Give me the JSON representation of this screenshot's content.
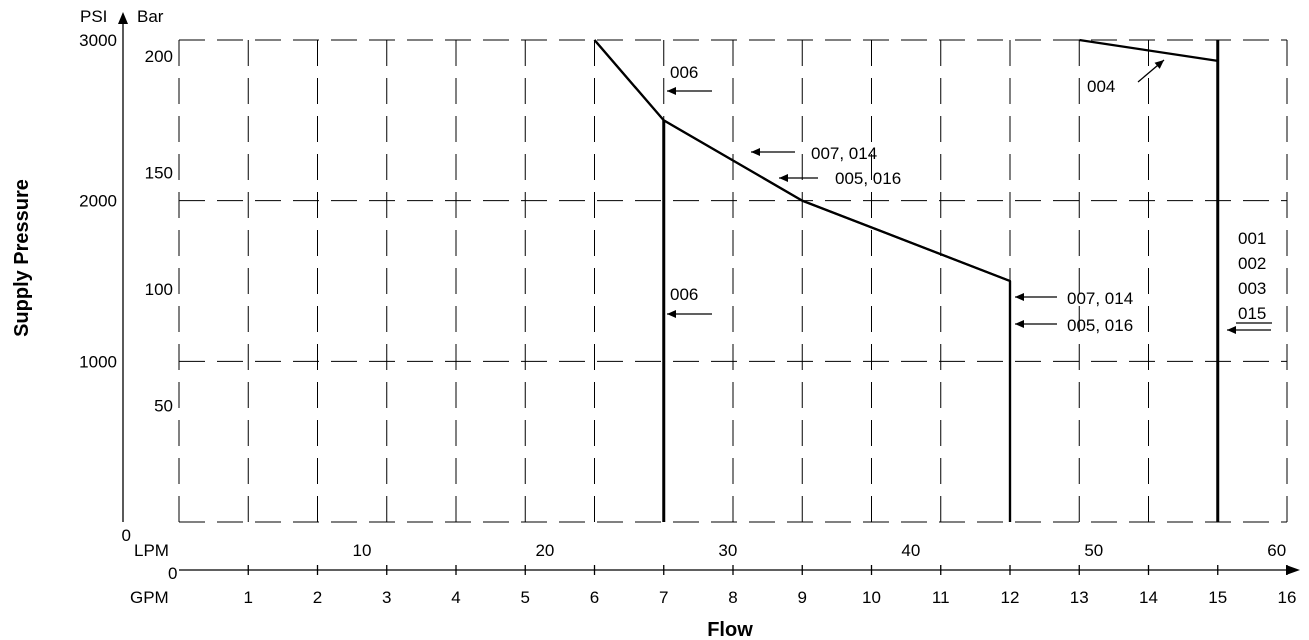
{
  "chart_data": {
    "type": "line",
    "title": "",
    "xlabel": "Flow",
    "ylabel": "Supply Pressure",
    "x_units": {
      "primary": "GPM",
      "secondary": "LPM"
    },
    "y_units": {
      "primary": "PSI",
      "secondary": "Bar"
    },
    "xlim": [
      0,
      16
    ],
    "ylim": [
      0,
      3000
    ],
    "grid": true,
    "gpm_ticks": [
      "1",
      "2",
      "3",
      "4",
      "5",
      "6",
      "7",
      "8",
      "9",
      "10",
      "11",
      "12",
      "13",
      "14",
      "15",
      "16"
    ],
    "lpm_ticks": [
      "10",
      "20",
      "30",
      "40",
      "50",
      "60"
    ],
    "psi_ticks": [
      "0",
      "1000",
      "2000",
      "3000"
    ],
    "bar_ticks": [
      "50",
      "100",
      "150",
      "200"
    ],
    "series": [
      {
        "name": "006",
        "x": [
          7,
          7
        ],
        "y": [
          0,
          2500
        ],
        "style": "thick"
      },
      {
        "name": "007, 014",
        "x": [
          6,
          7,
          9,
          12,
          12
        ],
        "y": [
          3000,
          2500,
          2000,
          1500,
          0
        ]
      },
      {
        "name": "005, 016",
        "x": [
          6,
          7,
          9,
          12,
          12
        ],
        "y": [
          3000,
          2500,
          2000,
          1500,
          0
        ]
      },
      {
        "name": "004",
        "x": [
          13,
          15
        ],
        "y": [
          3000,
          2870
        ]
      },
      {
        "name": "001 002 003 015",
        "x": [
          15,
          15
        ],
        "y": [
          0,
          3000
        ],
        "style": "thick"
      }
    ],
    "annotations": [
      {
        "id": "a006_top",
        "text": "006"
      },
      {
        "id": "a007_mid",
        "text": "007, 014"
      },
      {
        "id": "a005_mid",
        "text": "005, 016"
      },
      {
        "id": "a004",
        "text": "004"
      },
      {
        "id": "a006_low",
        "text": "006"
      },
      {
        "id": "a007_right",
        "text": "007, 014"
      },
      {
        "id": "a005_right",
        "text": "005, 016"
      },
      {
        "id": "a001",
        "text": "001"
      },
      {
        "id": "a002",
        "text": "002"
      },
      {
        "id": "a003",
        "text": "003"
      },
      {
        "id": "a015",
        "text": "015"
      }
    ],
    "axis_unit_labels": {
      "psi": "PSI",
      "bar": "Bar",
      "lpm": "LPM",
      "gpm": "GPM",
      "zero_x": "0",
      "zero_y": "0"
    }
  }
}
